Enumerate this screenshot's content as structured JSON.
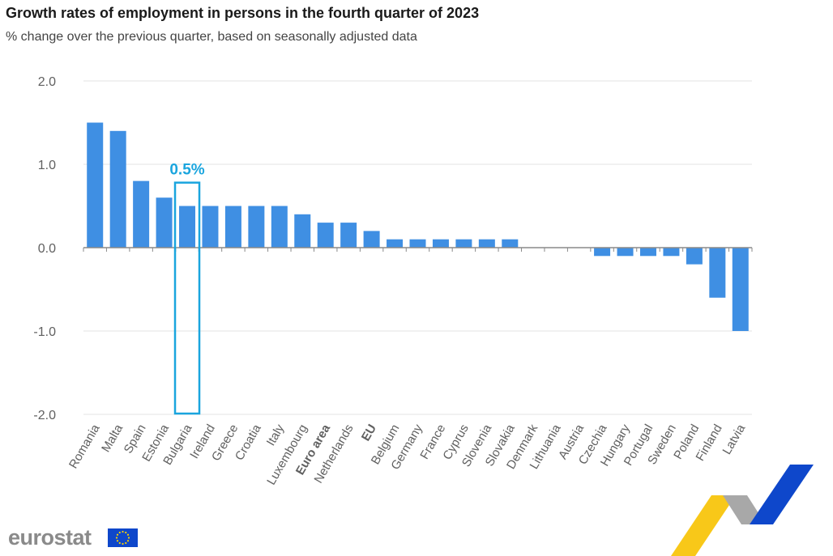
{
  "header": {
    "title": "Growth rates of employment in persons in the fourth quarter of 2023",
    "subtitle": "% change over the previous quarter, based on seasonally adjusted data"
  },
  "logo": {
    "text": "eurostat"
  },
  "colors": {
    "bar": "#3f8fe3",
    "highlight": "#1aa5de",
    "grid": "#e3e3e3",
    "axis_text": "#606060",
    "logo_blue": "#0e47cb",
    "deco_yellow": "#f7c200",
    "deco_blue": "#0e47cb",
    "deco_grey": "#a8a8a8"
  },
  "chart_data": {
    "type": "bar",
    "categories": [
      "Romania",
      "Malta",
      "Spain",
      "Estonia",
      "Bulgaria",
      "Ireland",
      "Greece",
      "Croatia",
      "Italy",
      "Luxembourg",
      "Euro area",
      "Netherlands",
      "EU",
      "Belgium",
      "Germany",
      "France",
      "Cyprus",
      "Slovenia",
      "Slovakia",
      "Denmark",
      "Lithuania",
      "Austria",
      "Czechia",
      "Hungary",
      "Portugal",
      "Sweden",
      "Poland",
      "Finland",
      "Latvia"
    ],
    "bold_categories": [
      "Euro area",
      "EU"
    ],
    "values": [
      1.5,
      1.4,
      0.8,
      0.6,
      0.5,
      0.5,
      0.5,
      0.5,
      0.5,
      0.4,
      0.3,
      0.3,
      0.2,
      0.1,
      0.1,
      0.1,
      0.1,
      0.1,
      0.1,
      0.0,
      0.0,
      0.0,
      -0.1,
      -0.1,
      -0.1,
      -0.1,
      -0.2,
      -0.6,
      -1.0
    ],
    "yticks": [
      "2.0",
      "1.0",
      "0.0",
      "-1.0",
      "-2.0"
    ],
    "ylim": [
      -2.0,
      2.0
    ],
    "grid": true,
    "highlight": {
      "category": "Bulgaria",
      "label": "0.5%"
    }
  }
}
